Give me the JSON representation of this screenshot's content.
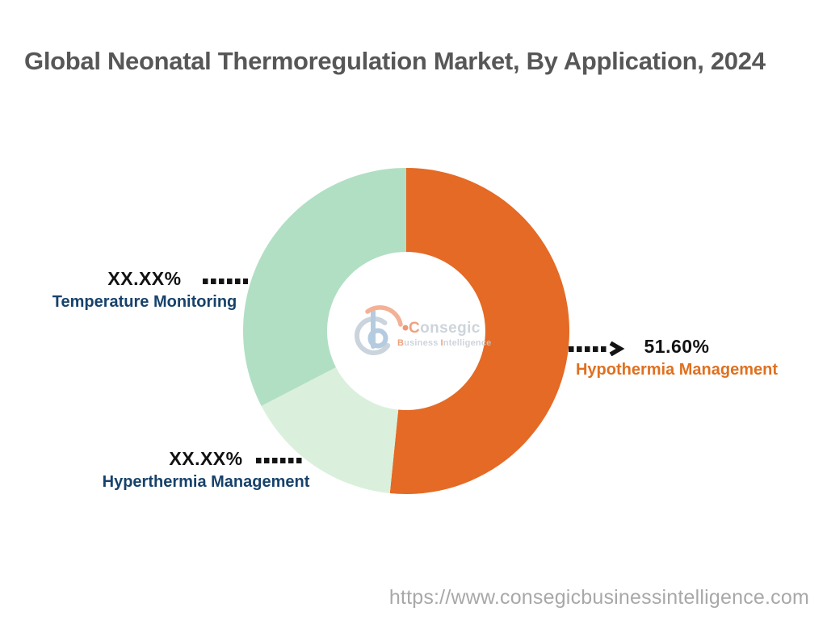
{
  "page": {
    "title": "Global Neonatal Thermoregulation Market, By Application, 2024",
    "source_url": "https://www.consegicbusinessintelligence.com",
    "background_color": "#FFFFFF"
  },
  "logo": {
    "brand_initial": "C",
    "brand_rest": "onsegic",
    "tagline_initial_1": "B",
    "tagline_word_1": "usiness",
    "tagline_initial_2": "I",
    "tagline_word_2": "ntelligence"
  },
  "chart_data": {
    "type": "pie",
    "subtype": "donut",
    "title": "Global Neonatal Thermoregulation Market, By Application, 2024",
    "direction": "clockwise",
    "start_angle_deg": 0,
    "inner_radius_ratio": 0.485,
    "legend_position": "outside-callouts",
    "leader_style": "dotted",
    "slices": [
      {
        "label": "Hypothermia Management",
        "value": 51.6,
        "display_value": "51.60%",
        "color": "#E46A25",
        "label_color": "#E0701F"
      },
      {
        "label": "Hyperthermia Management",
        "value": 15.8,
        "display_value": "XX.XX%",
        "color": "#DAF0DC",
        "label_color": "#17426B"
      },
      {
        "label": "Temperature Monitoring",
        "value": 32.6,
        "display_value": "XX.XX%",
        "color": "#B1DFC3",
        "label_color": "#17426B"
      }
    ]
  }
}
